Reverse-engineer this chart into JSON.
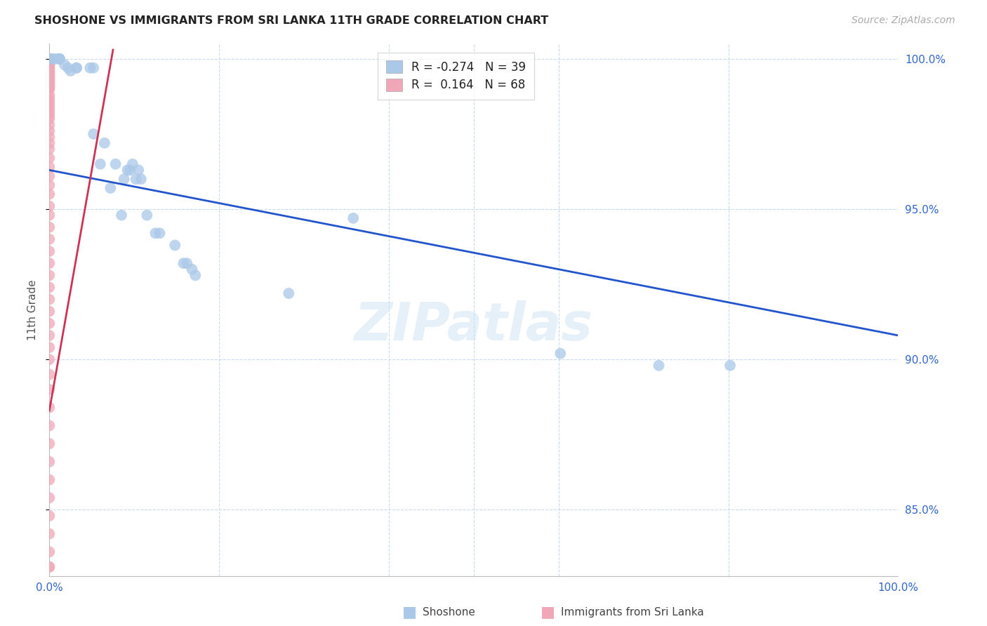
{
  "title": "SHOSHONE VS IMMIGRANTS FROM SRI LANKA 11TH GRADE CORRELATION CHART",
  "source": "Source: ZipAtlas.com",
  "ylabel": "11th Grade",
  "y_ticks": [
    0.85,
    0.9,
    0.95,
    1.0
  ],
  "y_tick_labels": [
    "85.0%",
    "90.0%",
    "95.0%",
    "100.0%"
  ],
  "x_range": [
    0.0,
    1.0
  ],
  "y_range": [
    0.828,
    1.005
  ],
  "legend_r_blue": "-0.274",
  "legend_n_blue": "39",
  "legend_r_pink": "0.164",
  "legend_n_pink": "68",
  "blue_color": "#aac8e8",
  "pink_color": "#f0a8b8",
  "trend_blue_color": "#2255cc",
  "trend_pink_color": "#cc3355",
  "watermark_color": "#d0e4f4",
  "blue_trend_x": [
    0.0,
    1.0
  ],
  "blue_trend_y": [
    0.963,
    0.908
  ],
  "pink_trend_x": [
    0.0,
    0.075
  ],
  "pink_trend_y": [
    0.883,
    1.003
  ],
  "blue_points_x": [
    0.003,
    0.003,
    0.007,
    0.012,
    0.012,
    0.012,
    0.018,
    0.022,
    0.025,
    0.032,
    0.032,
    0.048,
    0.052,
    0.052,
    0.06,
    0.065,
    0.072,
    0.078,
    0.085,
    0.092,
    0.098,
    0.105,
    0.108,
    0.115,
    0.13,
    0.148,
    0.158,
    0.162,
    0.168,
    0.172,
    0.282,
    0.358,
    0.602,
    0.718,
    0.802,
    0.088,
    0.095,
    0.102,
    0.125
  ],
  "blue_points_y": [
    1.0,
    1.0,
    1.0,
    1.0,
    1.0,
    1.0,
    0.998,
    0.997,
    0.996,
    0.997,
    0.997,
    0.997,
    0.997,
    0.975,
    0.965,
    0.972,
    0.957,
    0.965,
    0.948,
    0.963,
    0.965,
    0.963,
    0.96,
    0.948,
    0.942,
    0.938,
    0.932,
    0.932,
    0.93,
    0.928,
    0.922,
    0.947,
    0.902,
    0.898,
    0.898,
    0.96,
    0.963,
    0.96,
    0.942
  ],
  "pink_points_x": [
    0.0,
    0.0,
    0.0,
    0.0,
    0.0,
    0.0,
    0.0,
    0.0,
    0.0,
    0.0,
    0.0,
    0.0,
    0.0,
    0.0,
    0.0,
    0.0,
    0.0,
    0.0,
    0.0,
    0.0,
    0.0,
    0.0,
    0.0,
    0.0,
    0.0,
    0.0,
    0.0,
    0.0,
    0.0,
    0.0,
    0.0,
    0.0,
    0.0,
    0.0,
    0.0,
    0.0,
    0.0,
    0.0,
    0.0,
    0.0,
    0.0,
    0.0,
    0.0,
    0.0,
    0.0,
    0.0,
    0.0,
    0.0,
    0.0,
    0.0,
    0.0,
    0.0,
    0.0,
    0.0,
    0.0,
    0.0,
    0.0,
    0.0,
    0.0,
    0.0,
    0.0,
    0.0,
    0.0,
    0.0,
    0.0,
    0.0,
    0.0,
    0.0
  ],
  "pink_points_y": [
    1.0,
    1.0,
    0.999,
    0.999,
    0.998,
    0.998,
    0.997,
    0.997,
    0.996,
    0.996,
    0.995,
    0.995,
    0.994,
    0.994,
    0.993,
    0.993,
    0.992,
    0.992,
    0.991,
    0.991,
    0.99,
    0.99,
    0.988,
    0.987,
    0.986,
    0.985,
    0.984,
    0.983,
    0.982,
    0.981,
    0.98,
    0.978,
    0.976,
    0.974,
    0.972,
    0.97,
    0.967,
    0.964,
    0.961,
    0.958,
    0.955,
    0.951,
    0.948,
    0.944,
    0.94,
    0.936,
    0.932,
    0.928,
    0.924,
    0.92,
    0.916,
    0.912,
    0.908,
    0.904,
    0.9,
    0.895,
    0.89,
    0.884,
    0.878,
    0.872,
    0.866,
    0.86,
    0.854,
    0.848,
    0.842,
    0.836,
    0.831,
    0.831
  ]
}
